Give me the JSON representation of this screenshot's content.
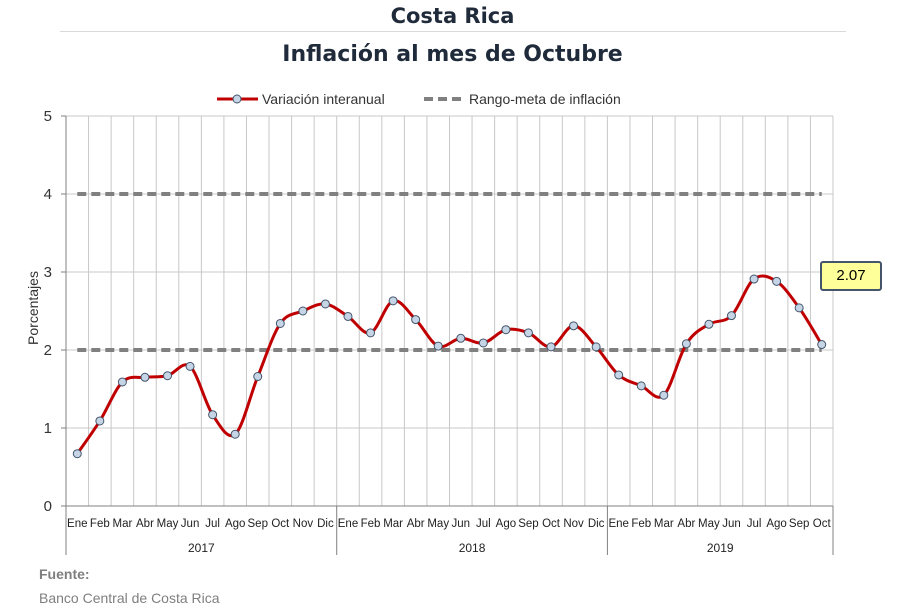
{
  "header": {
    "title": "Costa Rica",
    "subtitle": "Inflación al mes de Octubre"
  },
  "source": {
    "label": "Fuente:",
    "text": "Banco Central de Costa Rica"
  },
  "chart_data": {
    "type": "line",
    "ylabel": "Porcentajes",
    "ylim": [
      0,
      5
    ],
    "yticks": [
      0,
      1,
      2,
      3,
      4,
      5
    ],
    "grid": true,
    "legend_position": "top-center",
    "months": [
      "Ene",
      "Feb",
      "Mar",
      "Abr",
      "May",
      "Jun",
      "Jul",
      "Ago",
      "Sep",
      "Oct",
      "Nov",
      "Dic",
      "Ene",
      "Feb",
      "Mar",
      "Abr",
      "May",
      "Jun",
      "Jul",
      "Ago",
      "Sep",
      "Oct",
      "Nov",
      "Dic",
      "Ene",
      "Feb",
      "Mar",
      "Abr",
      "May",
      "Jun",
      "Jul",
      "Ago",
      "Sep",
      "Oct"
    ],
    "years": [
      {
        "label": "2017",
        "months": 12
      },
      {
        "label": "2018",
        "months": 12
      },
      {
        "label": "2019",
        "months": 10
      }
    ],
    "series": [
      {
        "name": "Variación interanual",
        "color": "#c00000",
        "values": [
          0.67,
          1.09,
          1.59,
          1.65,
          1.67,
          1.79,
          1.17,
          0.92,
          1.66,
          2.34,
          2.5,
          2.59,
          2.43,
          2.22,
          2.63,
          2.39,
          2.05,
          2.15,
          2.09,
          2.26,
          2.22,
          2.04,
          2.31,
          2.04,
          1.68,
          1.54,
          1.42,
          2.08,
          2.33,
          2.44,
          2.91,
          2.88,
          2.54,
          2.07
        ]
      },
      {
        "name": "Rango-meta de inflación",
        "color": "#808080",
        "lower": 2,
        "upper": 4
      }
    ],
    "last_value_label": "2.07"
  }
}
